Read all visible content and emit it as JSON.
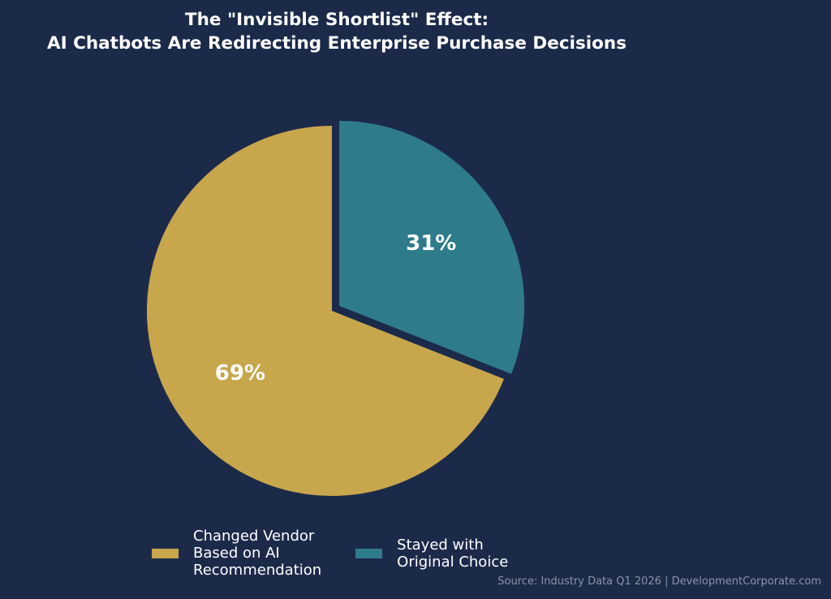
{
  "title_lines": [
    "The \"Invisible Shortlist\" Effect:",
    "AI Chatbots Are Redirecting Enterprise Purchase Decisions"
  ],
  "chart_data": {
    "type": "pie",
    "title": "The \"Invisible Shortlist\" Effect: AI Chatbots Are Redirecting Enterprise Purchase Decisions",
    "slices": [
      {
        "name": "Changed Vendor\nBased on AI\nRecommendation",
        "value": 69,
        "label": "69%",
        "color": "#c8a64c",
        "exploded": false
      },
      {
        "name": "Stayed with\nOriginal Choice",
        "value": 31,
        "label": "31%",
        "color": "#2e7b8c",
        "exploded": true
      }
    ],
    "legend_position": "bottom"
  },
  "source": "Source: Industry Data Q1 2026 | DevelopmentCorporate.com",
  "colors": {
    "background": "#1c2a4a",
    "text": "#ffffff",
    "source_text": "#8a93a6"
  }
}
